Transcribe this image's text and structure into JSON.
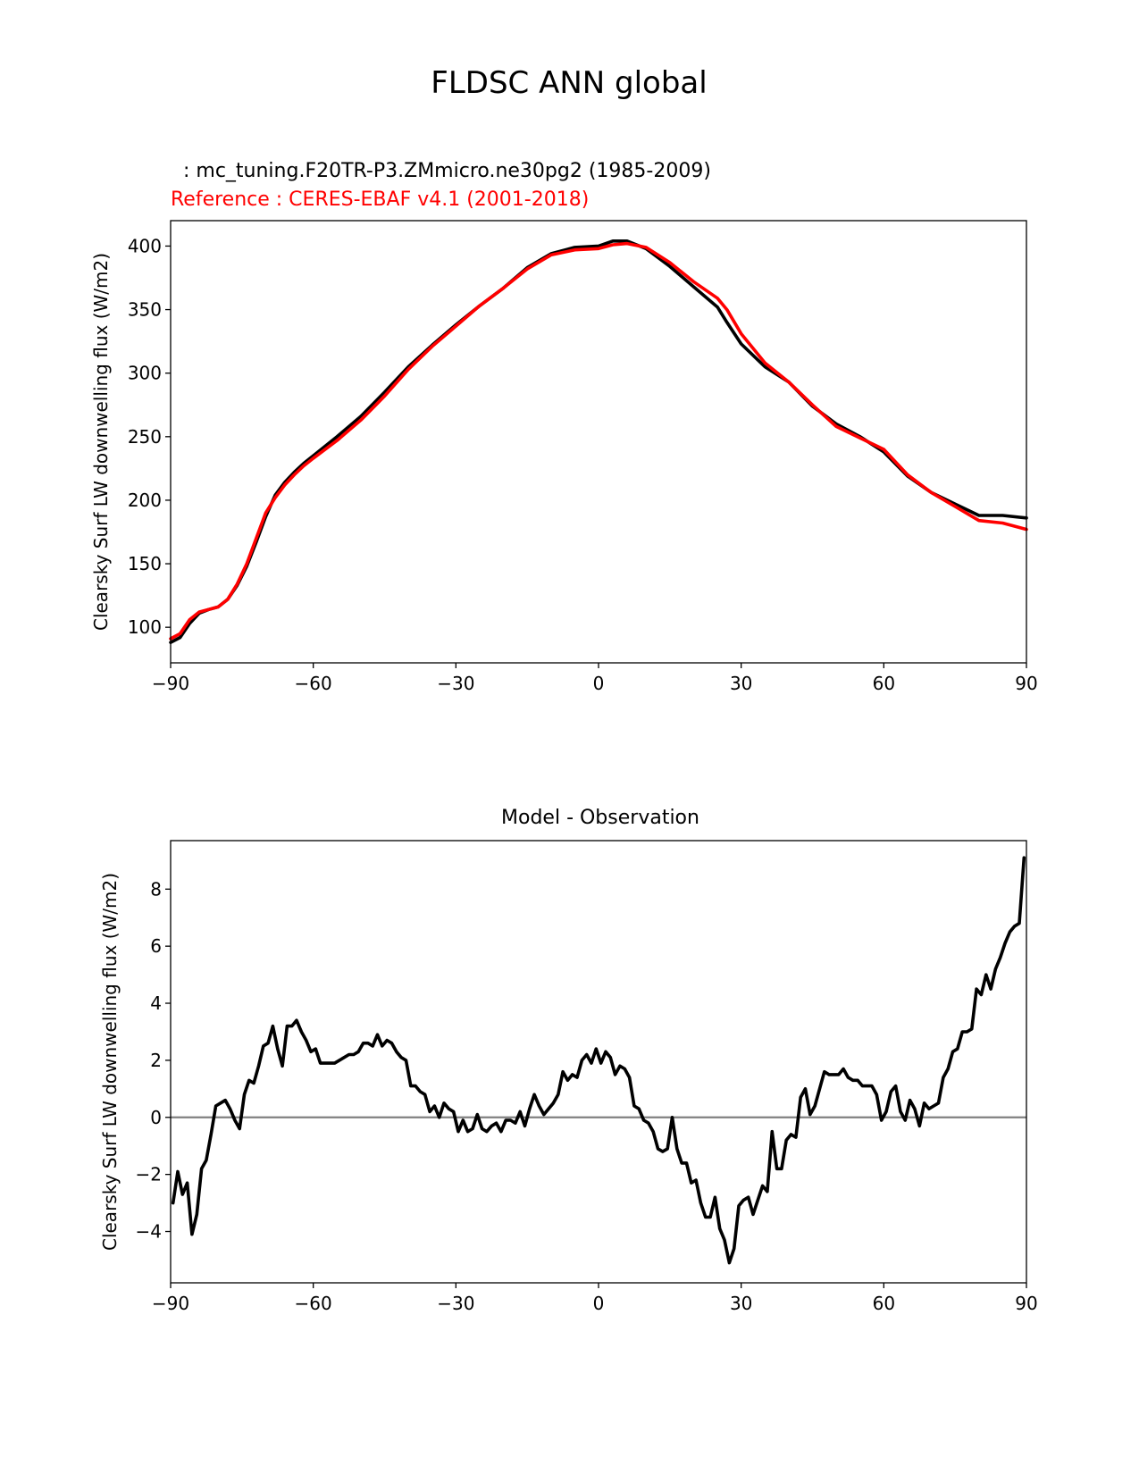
{
  "figure": {
    "title": "FLDSC ANN global"
  },
  "chart_data": [
    {
      "type": "line",
      "test_label": "  : mc_tuning.F20TR-P3.ZMmicro.ne30pg2 (1985-2009)",
      "ref_label": "Reference : CERES-EBAF v4.1 (2001-2018)",
      "title": "",
      "xlabel": "",
      "ylabel": "Clearsky Surf LW downwelling flux (W/m2)",
      "xlim": [
        -90,
        90
      ],
      "ylim": [
        72,
        420
      ],
      "xticks": [
        -90,
        -60,
        -30,
        0,
        30,
        60,
        90
      ],
      "xticklabels": [
        "−90",
        "−60",
        "−30",
        "0",
        "30",
        "60",
        "90"
      ],
      "yticks": [
        100,
        150,
        200,
        250,
        300,
        350,
        400
      ],
      "yticklabels": [
        "100",
        "150",
        "200",
        "250",
        "300",
        "350",
        "400"
      ],
      "colors": {
        "test": "#000000",
        "ref": "#ff0000"
      },
      "series": [
        {
          "role": "test",
          "x": [
            -90,
            -88,
            -86,
            -84,
            -82,
            -80,
            -78,
            -76,
            -74,
            -72,
            -70,
            -68,
            -66,
            -64,
            -62,
            -60,
            -55,
            -50,
            -45,
            -40,
            -35,
            -30,
            -25,
            -20,
            -15,
            -10,
            -5,
            0,
            3,
            6,
            10,
            15,
            20,
            25,
            27,
            30,
            35,
            40,
            45,
            50,
            55,
            60,
            65,
            70,
            75,
            80,
            85,
            90
          ],
          "values": [
            88,
            92,
            103,
            111,
            114,
            116,
            122,
            133,
            148,
            167,
            187,
            204,
            214,
            222,
            229,
            235,
            250,
            266,
            285,
            305,
            322,
            338,
            353,
            367,
            383,
            394,
            399,
            400,
            404,
            404,
            398,
            384,
            368,
            352,
            340,
            323,
            305,
            293,
            274,
            260,
            250,
            238,
            219,
            206,
            197,
            188,
            188,
            186
          ]
        },
        {
          "role": "ref",
          "x": [
            -90,
            -88,
            -86,
            -84,
            -82,
            -80,
            -78,
            -76,
            -74,
            -72,
            -70,
            -68,
            -66,
            -64,
            -62,
            -60,
            -55,
            -50,
            -45,
            -40,
            -35,
            -30,
            -25,
            -20,
            -15,
            -10,
            -5,
            0,
            3,
            6,
            10,
            15,
            20,
            25,
            27,
            30,
            35,
            40,
            45,
            50,
            55,
            60,
            65,
            70,
            75,
            80,
            85,
            90
          ],
          "values": [
            91,
            95,
            106,
            112,
            114,
            116,
            122,
            134,
            150,
            170,
            190,
            202,
            212,
            220,
            227,
            233,
            247,
            263,
            282,
            303,
            321,
            337,
            353,
            367,
            382,
            393,
            397,
            398,
            401,
            402,
            399,
            387,
            372,
            359,
            350,
            331,
            308,
            293,
            275,
            258,
            249,
            240,
            220,
            206,
            195,
            184,
            182,
            177
          ]
        }
      ]
    },
    {
      "type": "line",
      "title": "Model - Observation",
      "xlabel": "",
      "ylabel": "Clearsky Surf LW downwelling flux (W/m2)",
      "xlim": [
        -90,
        90
      ],
      "ylim": [
        -5.8,
        9.7
      ],
      "xticks": [
        -90,
        -60,
        -30,
        0,
        30,
        60,
        90
      ],
      "xticklabels": [
        "−90",
        "−60",
        "−30",
        "0",
        "30",
        "60",
        "90"
      ],
      "yticks": [
        -4,
        -2,
        0,
        2,
        4,
        6,
        8
      ],
      "yticklabels": [
        "−4",
        "−2",
        "0",
        "2",
        "4",
        "6",
        "8"
      ],
      "colors": {
        "diff": "#000000",
        "zero": "#808080"
      },
      "zero_line": 0,
      "series": [
        {
          "role": "diff",
          "x": [
            -89.5,
            -88.5,
            -87.5,
            -86.5,
            -85.5,
            -84.5,
            -83.5,
            -82.5,
            -81.5,
            -80.5,
            -79.5,
            -78.5,
            -77.5,
            -76.5,
            -75.5,
            -74.5,
            -73.5,
            -72.5,
            -71.5,
            -70.5,
            -69.5,
            -68.5,
            -67.5,
            -66.5,
            -65.5,
            -64.5,
            -63.5,
            -62.5,
            -61.5,
            -60.5,
            -59.5,
            -58.5,
            -57.5,
            -56.5,
            -55.5,
            -54.5,
            -53.5,
            -52.5,
            -51.5,
            -50.5,
            -49.5,
            -48.5,
            -47.5,
            -46.5,
            -45.5,
            -44.5,
            -43.5,
            -42.5,
            -41.5,
            -40.5,
            -39.5,
            -38.5,
            -37.5,
            -36.5,
            -35.5,
            -34.5,
            -33.5,
            -32.5,
            -31.5,
            -30.5,
            -29.5,
            -28.5,
            -27.5,
            -26.5,
            -25.5,
            -24.5,
            -23.5,
            -22.5,
            -21.5,
            -20.5,
            -19.5,
            -18.5,
            -17.5,
            -16.5,
            -15.5,
            -14.5,
            -13.5,
            -12.5,
            -11.5,
            -10.5,
            -9.5,
            -8.5,
            -7.5,
            -6.5,
            -5.5,
            -4.5,
            -3.5,
            -2.5,
            -1.5,
            -0.5,
            0.5,
            1.5,
            2.5,
            3.5,
            4.5,
            5.5,
            6.5,
            7.5,
            8.5,
            9.5,
            10.5,
            11.5,
            12.5,
            13.5,
            14.5,
            15.5,
            16.5,
            17.5,
            18.5,
            19.5,
            20.5,
            21.5,
            22.5,
            23.5,
            24.5,
            25.5,
            26.5,
            27.5,
            28.5,
            29.5,
            30.5,
            31.5,
            32.5,
            33.5,
            34.5,
            35.5,
            36.5,
            37.5,
            38.5,
            39.5,
            40.5,
            41.5,
            42.5,
            43.5,
            44.5,
            45.5,
            46.5,
            47.5,
            48.5,
            49.5,
            50.5,
            51.5,
            52.5,
            53.5,
            54.5,
            55.5,
            56.5,
            57.5,
            58.5,
            59.5,
            60.5,
            61.5,
            62.5,
            63.5,
            64.5,
            65.5,
            66.5,
            67.5,
            68.5,
            69.5,
            70.5,
            71.5,
            72.5,
            73.5,
            74.5,
            75.5,
            76.5,
            77.5,
            78.5,
            79.5,
            80.5,
            81.5,
            82.5,
            83.5,
            84.5,
            85.5,
            86.5,
            87.5,
            88.5,
            89.5
          ],
          "values": [
            -3.0,
            -1.9,
            -2.7,
            -2.3,
            -4.1,
            -3.4,
            -1.8,
            -1.5,
            -0.6,
            0.4,
            0.5,
            0.6,
            0.3,
            -0.1,
            -0.4,
            0.8,
            1.3,
            1.2,
            1.8,
            2.5,
            2.6,
            3.2,
            2.4,
            1.8,
            3.2,
            3.2,
            3.4,
            3.0,
            2.7,
            2.3,
            2.4,
            1.9,
            1.9,
            1.9,
            1.9,
            2.0,
            2.1,
            2.2,
            2.2,
            2.3,
            2.6,
            2.6,
            2.5,
            2.9,
            2.5,
            2.7,
            2.6,
            2.3,
            2.1,
            2.0,
            1.1,
            1.1,
            0.9,
            0.8,
            0.2,
            0.4,
            0.0,
            0.5,
            0.3,
            0.2,
            -0.5,
            -0.1,
            -0.5,
            -0.4,
            0.1,
            -0.4,
            -0.5,
            -0.3,
            -0.2,
            -0.5,
            -0.1,
            -0.1,
            -0.2,
            0.2,
            -0.3,
            0.3,
            0.8,
            0.4,
            0.1,
            0.3,
            0.5,
            0.8,
            1.6,
            1.3,
            1.5,
            1.4,
            2.0,
            2.2,
            1.9,
            2.4,
            1.9,
            2.3,
            2.1,
            1.5,
            1.8,
            1.7,
            1.4,
            0.4,
            0.3,
            -0.1,
            -0.2,
            -0.5,
            -1.1,
            -1.2,
            -1.1,
            0.0,
            -1.1,
            -1.6,
            -1.6,
            -2.3,
            -2.2,
            -3.0,
            -3.5,
            -3.5,
            -2.8,
            -3.9,
            -4.3,
            -5.1,
            -4.6,
            -3.1,
            -2.9,
            -2.8,
            -3.4,
            -2.9,
            -2.4,
            -2.6,
            -0.5,
            -1.8,
            -1.8,
            -0.8,
            -0.6,
            -0.7,
            0.7,
            1.0,
            0.1,
            0.4,
            1.0,
            1.6,
            1.5,
            1.5,
            1.5,
            1.7,
            1.4,
            1.3,
            1.3,
            1.1,
            1.1,
            1.1,
            0.8,
            -0.1,
            0.2,
            0.9,
            1.1,
            0.2,
            -0.1,
            0.6,
            0.3,
            -0.3,
            0.5,
            0.3,
            0.4,
            0.5,
            1.4,
            1.7,
            2.3,
            2.4,
            3.0,
            3.0,
            3.1,
            4.5,
            4.3,
            5.0,
            4.5,
            5.2,
            5.6,
            6.1,
            6.5,
            6.7,
            6.8,
            9.1
          ]
        }
      ]
    }
  ]
}
